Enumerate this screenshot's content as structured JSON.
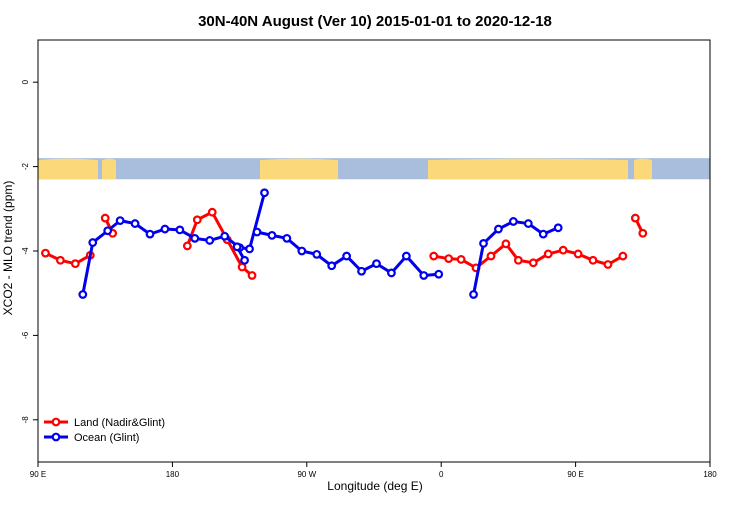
{
  "chart_data": {
    "type": "line",
    "title": "30N-40N August (Ver 10)   2015-01-01 to 2020-12-18",
    "xlabel": "Longitude (deg E)",
    "ylabel": "XCO2 - MLO trend (ppm)",
    "xlim": [
      -90,
      180
    ],
    "ylim": [
      -9,
      1
    ],
    "x_ticks": [
      {
        "value": -90,
        "label": "90 E"
      },
      {
        "value": -36,
        "label": "180"
      },
      {
        "value": 18,
        "label": "90 W"
      },
      {
        "value": 72,
        "label": "0"
      },
      {
        "value": 126,
        "label": "90 E"
      },
      {
        "value": 180,
        "label": "180"
      }
    ],
    "y_ticks": [
      {
        "value": 0,
        "label": "0"
      },
      {
        "value": -2,
        "label": "-2"
      },
      {
        "value": -4,
        "label": "-4"
      },
      {
        "value": -6,
        "label": "-6"
      },
      {
        "value": -8,
        "label": "-8"
      }
    ],
    "grid": false,
    "legend_position": "bottom-left",
    "map_strip": {
      "y_range": [
        -1.8,
        -2.3
      ],
      "ocean_color": "#a9bedd",
      "land_color": "#fbd97a"
    },
    "series": [
      {
        "name": "Land (Nadir&Glint)",
        "color": "#ff0000",
        "segments": [
          [
            [
              -87,
              -4.05
            ],
            [
              -81,
              -4.22
            ],
            [
              -75,
              -4.3
            ],
            [
              -69,
              -4.1
            ]
          ],
          [
            [
              -63,
              -3.22
            ],
            [
              -60,
              -3.58
            ]
          ],
          [
            [
              -30,
              -3.88
            ],
            [
              -26,
              -3.26
            ],
            [
              -20,
              -3.08
            ],
            [
              -14,
              -3.73
            ],
            [
              -8,
              -4.38
            ],
            [
              -4,
              -4.58
            ]
          ],
          [
            [
              69,
              -4.12
            ],
            [
              75,
              -4.18
            ],
            [
              80,
              -4.2
            ],
            [
              86,
              -4.4
            ],
            [
              92,
              -4.12
            ],
            [
              98,
              -3.83
            ],
            [
              103,
              -4.22
            ],
            [
              109,
              -4.28
            ],
            [
              115,
              -4.07
            ],
            [
              121,
              -3.98
            ],
            [
              127,
              -4.07
            ],
            [
              133,
              -4.22
            ],
            [
              139,
              -4.32
            ],
            [
              145,
              -4.12
            ]
          ],
          [
            [
              150,
              -3.22
            ],
            [
              153,
              -3.58
            ]
          ]
        ]
      },
      {
        "name": "Ocean (Glint)",
        "color": "#0000ee",
        "segments": [
          [
            [
              -72,
              -5.03
            ],
            [
              -68,
              -3.8
            ],
            [
              -62,
              -3.52
            ],
            [
              -57,
              -3.28
            ],
            [
              -51,
              -3.35
            ],
            [
              -45,
              -3.6
            ],
            [
              -39,
              -3.48
            ],
            [
              -33,
              -3.5
            ],
            [
              -27,
              -3.7
            ],
            [
              -21,
              -3.75
            ],
            [
              -15,
              -3.65
            ],
            [
              -9,
              -3.92
            ],
            [
              -5,
              -3.95
            ],
            [
              1,
              -2.62
            ]
          ],
          [
            [
              -10,
              -3.9
            ],
            [
              -7,
              -4.22
            ]
          ],
          [
            [
              -2,
              -3.55
            ],
            [
              4,
              -3.63
            ],
            [
              10,
              -3.7
            ],
            [
              16,
              -4.0
            ],
            [
              22,
              -4.08
            ],
            [
              28,
              -4.35
            ],
            [
              34,
              -4.12
            ],
            [
              40,
              -4.48
            ],
            [
              46,
              -4.3
            ],
            [
              52,
              -4.52
            ],
            [
              58,
              -4.12
            ],
            [
              65,
              -4.58
            ],
            [
              71,
              -4.55
            ]
          ],
          [
            [
              85,
              -5.03
            ],
            [
              89,
              -3.82
            ],
            [
              95,
              -3.48
            ],
            [
              101,
              -3.3
            ],
            [
              107,
              -3.35
            ],
            [
              113,
              -3.6
            ],
            [
              119,
              -3.45
            ]
          ]
        ]
      }
    ]
  }
}
